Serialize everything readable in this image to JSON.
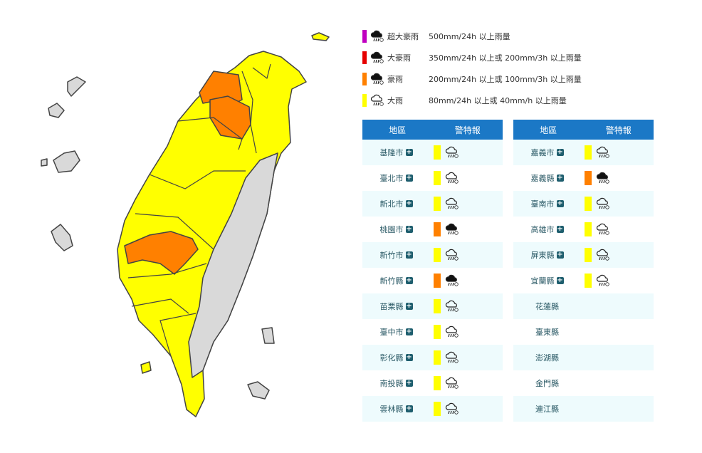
{
  "colors": {
    "extreme_torrential": "#c000c0",
    "torrential": "#e60000",
    "extremely_heavy": "#ff8000",
    "heavy": "#ffff00",
    "none": "#d9d9d9"
  },
  "legend": [
    {
      "level": "extreme_torrential",
      "name": "超大豪雨",
      "desc": "500mm/24h 以上雨量",
      "icon": "cloud-rain-filled-icon"
    },
    {
      "level": "torrential",
      "name": "大豪雨",
      "desc": "350mm/24h 以上或 200mm/3h 以上雨量",
      "icon": "cloud-rain-filled-icon"
    },
    {
      "level": "extremely_heavy",
      "name": "豪雨",
      "desc": "200mm/24h 以上或 100mm/3h 以上雨量",
      "icon": "cloud-rain-filled-icon"
    },
    {
      "level": "heavy",
      "name": "大雨",
      "desc": "80mm/24h 以上或 40mm/h 以上雨量",
      "icon": "cloud-rain-outline-icon"
    }
  ],
  "table": {
    "col_region": "地區",
    "col_warning": "警特報",
    "left": [
      {
        "city": "基隆市",
        "level": "heavy"
      },
      {
        "city": "臺北市",
        "level": "heavy"
      },
      {
        "city": "新北市",
        "level": "heavy"
      },
      {
        "city": "桃園市",
        "level": "extremely_heavy"
      },
      {
        "city": "新竹市",
        "level": "heavy"
      },
      {
        "city": "新竹縣",
        "level": "extremely_heavy"
      },
      {
        "city": "苗栗縣",
        "level": "heavy"
      },
      {
        "city": "臺中市",
        "level": "heavy"
      },
      {
        "city": "彰化縣",
        "level": "heavy"
      },
      {
        "city": "南投縣",
        "level": "heavy"
      },
      {
        "city": "雲林縣",
        "level": "heavy"
      }
    ],
    "right": [
      {
        "city": "嘉義市",
        "level": "heavy"
      },
      {
        "city": "嘉義縣",
        "level": "extremely_heavy"
      },
      {
        "city": "臺南市",
        "level": "heavy"
      },
      {
        "city": "高雄市",
        "level": "heavy"
      },
      {
        "city": "屏東縣",
        "level": "heavy"
      },
      {
        "city": "宜蘭縣",
        "level": "heavy"
      },
      {
        "city": "花蓮縣",
        "level": null
      },
      {
        "city": "臺東縣",
        "level": null
      },
      {
        "city": "澎湖縣",
        "level": null
      },
      {
        "city": "金門縣",
        "level": null
      },
      {
        "city": "連江縣",
        "level": null
      }
    ]
  }
}
